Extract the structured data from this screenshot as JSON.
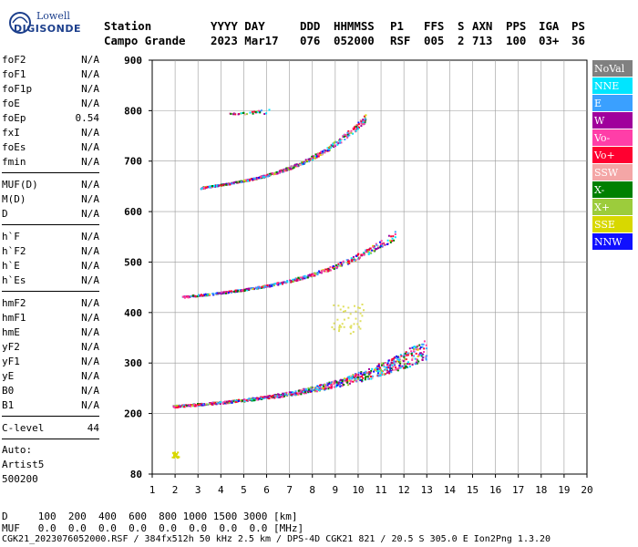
{
  "logo": {
    "brand_top": "Lowell",
    "brand_bottom": "DIGISONDE"
  },
  "header": {
    "columns": [
      {
        "label": "Station",
        "value": "Campo Grande"
      },
      {
        "label": "YYYY DAY",
        "value": "2023 Mar17"
      },
      {
        "label": "DDD",
        "value": "076"
      },
      {
        "label": "HHMMSS",
        "value": "052000"
      },
      {
        "label": "P1",
        "value": "RSF"
      },
      {
        "label": "FFS",
        "value": "005"
      },
      {
        "label": "S",
        "value": "2"
      },
      {
        "label": "AXN",
        "value": "713"
      },
      {
        "label": "PPS",
        "value": "100"
      },
      {
        "label": "IGA",
        "value": "03+"
      },
      {
        "label": "PS",
        "value": "36"
      }
    ]
  },
  "parameters": {
    "group1": [
      {
        "name": "foF2",
        "value": "N/A"
      },
      {
        "name": "foF1",
        "value": "N/A"
      },
      {
        "name": "foF1p",
        "value": "N/A"
      },
      {
        "name": "foE",
        "value": "N/A"
      },
      {
        "name": "foEp",
        "value": "0.54"
      },
      {
        "name": "fxI",
        "value": "N/A"
      },
      {
        "name": "foEs",
        "value": "N/A"
      },
      {
        "name": "fmin",
        "value": "N/A"
      }
    ],
    "group2": [
      {
        "name": "MUF(D)",
        "value": "N/A"
      },
      {
        "name": "M(D)",
        "value": "N/A"
      },
      {
        "name": "D",
        "value": "N/A"
      }
    ],
    "group3": [
      {
        "name": "h`F",
        "value": "N/A"
      },
      {
        "name": "h`F2",
        "value": "N/A"
      },
      {
        "name": "h`E",
        "value": "N/A"
      },
      {
        "name": "h`Es",
        "value": "N/A"
      }
    ],
    "group4": [
      {
        "name": "hmF2",
        "value": "N/A"
      },
      {
        "name": "hmF1",
        "value": "N/A"
      },
      {
        "name": "hmE",
        "value": "N/A"
      },
      {
        "name": "yF2",
        "value": "N/A"
      },
      {
        "name": "yF1",
        "value": "N/A"
      },
      {
        "name": "yE",
        "value": "N/A"
      },
      {
        "name": "B0",
        "value": "N/A"
      },
      {
        "name": "B1",
        "value": "N/A"
      }
    ],
    "group5": [
      {
        "name": "C-level",
        "value": "44"
      }
    ]
  },
  "autoscale": {
    "line1": "Auto:",
    "line2": "Artist5",
    "line3": "500200"
  },
  "legend": [
    {
      "label": "NoVal",
      "color": "#808080"
    },
    {
      "label": "NNE",
      "color": "#00e5ff"
    },
    {
      "label": "E",
      "color": "#3aa0ff"
    },
    {
      "label": "W",
      "color": "#a0009c"
    },
    {
      "label": "Vo-",
      "color": "#ff3ea8"
    },
    {
      "label": "Vo+",
      "color": "#ff0030"
    },
    {
      "label": "SSW",
      "color": "#f4a6a6"
    },
    {
      "label": "X-",
      "color": "#008000"
    },
    {
      "label": "X+",
      "color": "#9ccc3c"
    },
    {
      "label": "SSE",
      "color": "#d8d800"
    },
    {
      "label": "NNW",
      "color": "#1010ff"
    }
  ],
  "footer": {
    "d_row": "D     100  200  400  600  800 1000 1500 3000 [km]",
    "muf_row": "MUF   0.0  0.0  0.0  0.0  0.0  0.0  0.0  0.0 [MHz]",
    "file_row": "CGK21_2023076052000.RSF / 384fx512h 50 kHz 2.5 km / DPS-4D CGK21 821 / 20.5 S 305.0 E Ion2Png 1.3.20"
  },
  "chart_data": {
    "type": "scatter",
    "x": {
      "min": 1,
      "max": 20,
      "ticks": [
        1,
        2,
        3,
        4,
        5,
        6,
        7,
        8,
        9,
        10,
        11,
        12,
        13,
        14,
        15,
        16,
        17,
        18,
        19,
        20
      ]
    },
    "y": {
      "min": 80,
      "max": 900,
      "ticks": [
        80,
        200,
        300,
        400,
        500,
        600,
        700,
        800,
        900
      ]
    },
    "grid": true,
    "legend_position": "right",
    "traces": [
      {
        "name": "trace-1",
        "x_start": 1.9,
        "x_end": 13.0,
        "y_start": 215,
        "y_end": 330
      },
      {
        "name": "trace-2",
        "x_start": 2.3,
        "x_end": 11.6,
        "y_start": 432,
        "y_end": 555
      },
      {
        "name": "trace-3",
        "x_start": 3.1,
        "x_end": 10.3,
        "y_start": 648,
        "y_end": 785
      },
      {
        "name": "trace-4",
        "x_start": 4.3,
        "x_end": 6.1,
        "y_start": 795,
        "y_end": 800
      }
    ],
    "clusters": [
      {
        "x": 2.0,
        "y": 120
      },
      {
        "x": 9.5,
        "y": 390
      }
    ]
  }
}
